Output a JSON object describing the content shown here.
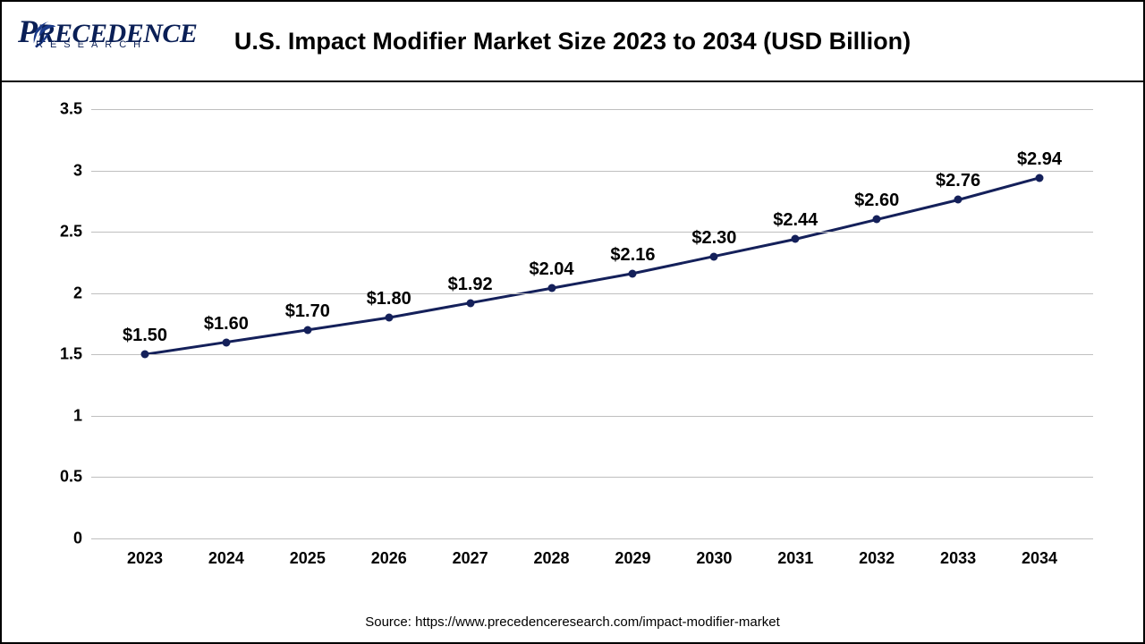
{
  "logo": {
    "brand_main": "RECEDENCE",
    "brand_sub": "RESEARCH",
    "brand_color": "#0a1f56",
    "swoosh_color": "#1a3a8a"
  },
  "chart": {
    "type": "line",
    "title": "U.S. Impact Modifier Market Size 2023 to 2034 (USD Billion)",
    "title_fontsize": 27,
    "title_fontweight": "bold",
    "background_color": "#ffffff",
    "grid_color": "#bfbfbf",
    "line_color": "#14205a",
    "line_width": 3,
    "marker_color": "#14205a",
    "marker_size": 9,
    "label_fontsize": 20,
    "axis_fontsize": 18,
    "ylim": [
      0,
      3.5
    ],
    "ytick_step": 0.5,
    "yticks": [
      "0",
      "0.5",
      "1",
      "1.5",
      "2",
      "2.5",
      "3",
      "3.5"
    ],
    "categories": [
      "2023",
      "2024",
      "2025",
      "2026",
      "2027",
      "2028",
      "2029",
      "2030",
      "2031",
      "2032",
      "2033",
      "2034"
    ],
    "values": [
      1.5,
      1.6,
      1.7,
      1.8,
      1.92,
      2.04,
      2.16,
      2.3,
      2.44,
      2.6,
      2.76,
      2.94
    ],
    "data_labels": [
      "$1.50",
      "$1.60",
      "$1.70",
      "$1.80",
      "$1.92",
      "$2.04",
      "$2.16",
      "$2.30",
      "$2.44",
      "$2.60",
      "$2.76",
      "$2.94"
    ]
  },
  "source": "Source: https://www.precedenceresearch.com/impact-modifier-market"
}
